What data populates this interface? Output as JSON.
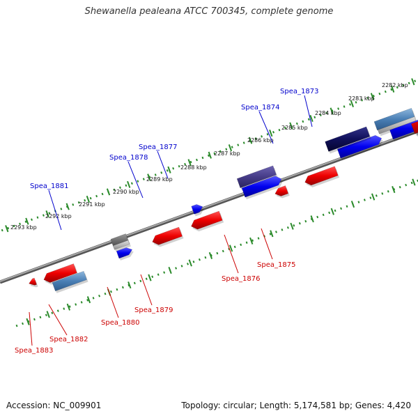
{
  "title": "Shewanella pealeana ATCC 700345, complete genome",
  "footer": {
    "accession": "Accession: NC_009901",
    "summary": "Topology: circular; Length: 5,174,581 bp; Genes: 4,420"
  },
  "colors": {
    "forward_label": "#0000cc",
    "reverse_label": "#cc0000",
    "tick": "#2a8a2a",
    "backbone": "#808080"
  },
  "scale_labels": [
    "2282 kbp",
    "2283 kbp",
    "2284 kbp",
    "2285 kbp",
    "2286 kbp",
    "2287 kbp",
    "2288 kbp",
    "2289 kbp",
    "2290 kbp",
    "2291 kbp",
    "2292 kbp",
    "2293 kbp"
  ],
  "gene_labels": [
    {
      "text": "Spea_1873",
      "strand": "forward"
    },
    {
      "text": "Spea_1874",
      "strand": "forward"
    },
    {
      "text": "Spea_1877",
      "strand": "forward"
    },
    {
      "text": "Spea_1878",
      "strand": "forward"
    },
    {
      "text": "Spea_1881",
      "strand": "forward"
    },
    {
      "text": "Spea_1875",
      "strand": "reverse"
    },
    {
      "text": "Spea_1876",
      "strand": "reverse"
    },
    {
      "text": "Spea_1879",
      "strand": "reverse"
    },
    {
      "text": "Spea_1880",
      "strand": "reverse"
    },
    {
      "text": "Spea_1882",
      "strand": "reverse"
    },
    {
      "text": "Spea_1883",
      "strand": "reverse"
    }
  ]
}
